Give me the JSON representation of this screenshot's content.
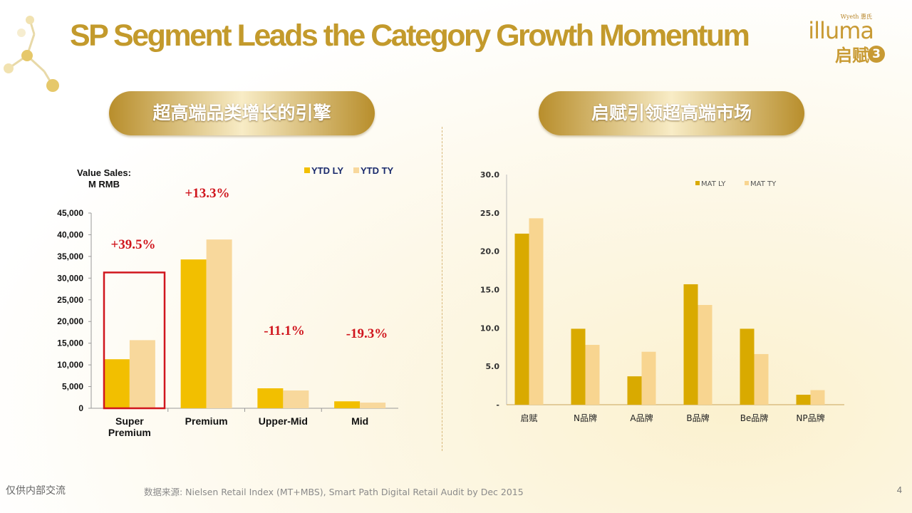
{
  "title": "SP Segment Leads the Category Growth Momentum",
  "brand": {
    "maker": "Wyeth 惠氏",
    "name": "illuma",
    "cn_name": "启赋",
    "stage": "3"
  },
  "left_header": "超高端品类增长的引擎",
  "right_header": "启赋引领超高端市场",
  "footer": {
    "internal": "仅供内部交流",
    "source": "数据来源: Nielsen Retail Index (MT+MBS), Smart Path Digital Retail Audit by Dec 2015",
    "page": "4"
  },
  "colors": {
    "ly": "#f2bf00",
    "ty": "#f8d89c",
    "mat_ly": "#d9aa00",
    "mat_ty": "#f8d590",
    "growth": "#d0161e",
    "highlight": "#d0161e"
  },
  "chart_data": [
    {
      "type": "bar",
      "ylabel_lines": [
        "Value Sales:",
        "M RMB"
      ],
      "categories": [
        [
          "Super",
          "Premium"
        ],
        [
          "Premium"
        ],
        [
          "Upper-Mid"
        ],
        [
          "Mid"
        ]
      ],
      "series": [
        {
          "name": "YTD LY",
          "values": [
            11300,
            34300,
            4600,
            1600
          ]
        },
        {
          "name": "YTD TY",
          "values": [
            15700,
            38900,
            4100,
            1300
          ]
        }
      ],
      "growth_labels": [
        "+39.5%",
        "+13.3%",
        "-11.1%",
        "-19.3%"
      ],
      "yticks": [
        "0",
        "5,000",
        "10,000",
        "15,000",
        "20,000",
        "25,000",
        "30,000",
        "35,000",
        "40,000",
        "45,000"
      ],
      "ylim": [
        0,
        45000
      ],
      "legend": "top-right",
      "highlight_category": "Super Premium"
    },
    {
      "type": "bar",
      "categories": [
        "启赋",
        "N品牌",
        "A品牌",
        "B品牌",
        "Be品牌",
        "NP品牌"
      ],
      "series": [
        {
          "name": "MAT LY",
          "values": [
            22.3,
            9.9,
            3.7,
            15.7,
            9.9,
            1.3
          ]
        },
        {
          "name": "MAT TY",
          "values": [
            24.3,
            7.8,
            6.9,
            13.0,
            6.6,
            1.9
          ]
        }
      ],
      "yticks": [
        "-",
        "5.0",
        "10.0",
        "15.0",
        "20.0",
        "25.0",
        "30.0"
      ],
      "ylim": [
        0,
        30
      ],
      "legend": "top-center"
    }
  ]
}
